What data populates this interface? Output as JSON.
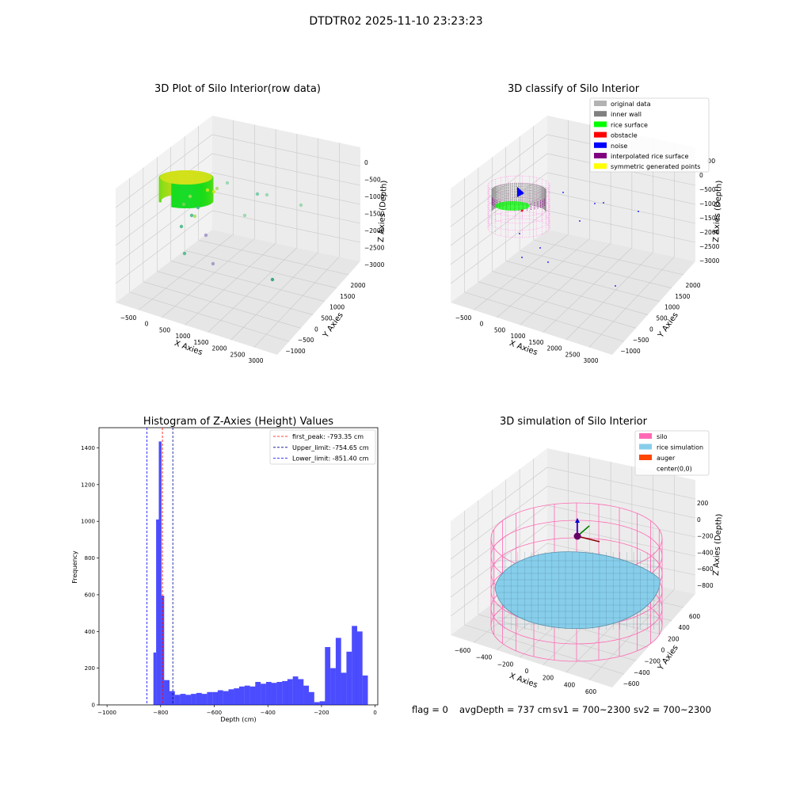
{
  "figure": {
    "suptitle": "DTDTR02 2025-11-10 23:23:23",
    "footer": {
      "flag": "flag = 0",
      "avg_depth": "avgDepth = 737 cm",
      "sv1": "sv1 = 700~2300",
      "sv2": "sv2 = 700~2300"
    }
  },
  "panels": {
    "raw": {
      "title": "3D Plot of Silo Interior(row data)",
      "xlabel": "X Axies",
      "ylabel": "Y Axies",
      "zlabel": "Z Axies (Depth)",
      "xticks": [
        "−500",
        "0",
        "500",
        "1000",
        "1500",
        "2000",
        "2500",
        "3000"
      ],
      "yticks": [
        "−1000",
        "−500",
        "0",
        "500",
        "1000",
        "1500",
        "2000"
      ],
      "zticks": [
        "0",
        "−500",
        "−1000",
        "−1500",
        "−2000",
        "−2500",
        "−3000"
      ]
    },
    "classify": {
      "title": "3D classify of Silo Interior",
      "xlabel": "X Axies",
      "ylabel": "Y Axies",
      "zlabel": "Z Axies (Depth)",
      "xticks": [
        "−500",
        "0",
        "500",
        "1000",
        "1500",
        "2000",
        "2500",
        "3000"
      ],
      "yticks": [
        "−1000",
        "−500",
        "0",
        "500",
        "1000",
        "1500",
        "2000"
      ],
      "zticks": [
        "0",
        "−500",
        "−1000",
        "−1500",
        "−2000",
        "−2500",
        "−3000"
      ],
      "z_top_partial": "00",
      "legend": [
        {
          "label": "original data",
          "color": "#b3b3b3"
        },
        {
          "label": "inner wall",
          "color": "#808080"
        },
        {
          "label": "rice surface",
          "color": "#00ff00"
        },
        {
          "label": "obstacle",
          "color": "#ff0000"
        },
        {
          "label": "noise",
          "color": "#0000ff"
        },
        {
          "label": "interpolated rice surface",
          "color": "#800080"
        },
        {
          "label": "symmetric generated points",
          "color": "#ffff00"
        }
      ]
    },
    "simulation": {
      "title": "3D simulation of Silo Interior",
      "xlabel": "X Axies",
      "ylabel": "Y Axies",
      "zlabel": "Z Axies (Depth)",
      "xticks": [
        "−600",
        "−400",
        "−200",
        "0",
        "200",
        "400",
        "600"
      ],
      "yticks": [
        "−600",
        "−400",
        "−200",
        "0",
        "200",
        "400",
        "600"
      ],
      "zticks": [
        "200",
        "0",
        "−200",
        "−400",
        "−600",
        "−800"
      ],
      "legend": [
        {
          "label": "silo",
          "color": "#ff69b4"
        },
        {
          "label": "rice simulation",
          "color": "#87ceeb"
        },
        {
          "label": "auger",
          "color": "#ff4500"
        },
        {
          "label": "center(0,0)",
          "color": ""
        }
      ]
    }
  },
  "chart_data": {
    "type": "bar",
    "title": "Histogram of Z-Axies (Height) Values",
    "xlabel": "Depth (cm)",
    "ylabel": "Frequency",
    "xlim": [
      -1030,
      10
    ],
    "ylim": [
      0,
      1510
    ],
    "xticks": [
      -1000,
      -800,
      -600,
      -400,
      -200,
      0
    ],
    "yticks": [
      0,
      200,
      400,
      600,
      800,
      1000,
      1200,
      1400
    ],
    "bar_color": "#0000ff",
    "bins": [
      {
        "x0": -827,
        "x1": -817,
        "count": 285
      },
      {
        "x0": -817,
        "x1": -807,
        "count": 1010
      },
      {
        "x0": -807,
        "x1": -797,
        "count": 1435
      },
      {
        "x0": -797,
        "x1": -787,
        "count": 595
      },
      {
        "x0": -787,
        "x1": -767,
        "count": 135
      },
      {
        "x0": -767,
        "x1": -747,
        "count": 75
      },
      {
        "x0": -747,
        "x1": -727,
        "count": 55
      },
      {
        "x0": -727,
        "x1": -707,
        "count": 60
      },
      {
        "x0": -707,
        "x1": -687,
        "count": 55
      },
      {
        "x0": -687,
        "x1": -667,
        "count": 60
      },
      {
        "x0": -667,
        "x1": -647,
        "count": 65
      },
      {
        "x0": -647,
        "x1": -627,
        "count": 60
      },
      {
        "x0": -627,
        "x1": -607,
        "count": 70
      },
      {
        "x0": -607,
        "x1": -587,
        "count": 70
      },
      {
        "x0": -587,
        "x1": -567,
        "count": 80
      },
      {
        "x0": -567,
        "x1": -547,
        "count": 75
      },
      {
        "x0": -547,
        "x1": -527,
        "count": 85
      },
      {
        "x0": -527,
        "x1": -507,
        "count": 90
      },
      {
        "x0": -507,
        "x1": -487,
        "count": 100
      },
      {
        "x0": -487,
        "x1": -467,
        "count": 105
      },
      {
        "x0": -467,
        "x1": -447,
        "count": 100
      },
      {
        "x0": -447,
        "x1": -427,
        "count": 125
      },
      {
        "x0": -427,
        "x1": -407,
        "count": 115
      },
      {
        "x0": -407,
        "x1": -387,
        "count": 125
      },
      {
        "x0": -387,
        "x1": -367,
        "count": 120
      },
      {
        "x0": -367,
        "x1": -347,
        "count": 125
      },
      {
        "x0": -347,
        "x1": -327,
        "count": 130
      },
      {
        "x0": -327,
        "x1": -307,
        "count": 140
      },
      {
        "x0": -307,
        "x1": -287,
        "count": 155
      },
      {
        "x0": -287,
        "x1": -267,
        "count": 140
      },
      {
        "x0": -267,
        "x1": -247,
        "count": 105
      },
      {
        "x0": -247,
        "x1": -227,
        "count": 70
      },
      {
        "x0": -227,
        "x1": -207,
        "count": 15
      },
      {
        "x0": -207,
        "x1": -187,
        "count": 20
      },
      {
        "x0": -187,
        "x1": -167,
        "count": 315
      },
      {
        "x0": -167,
        "x1": -147,
        "count": 200
      },
      {
        "x0": -147,
        "x1": -127,
        "count": 365
      },
      {
        "x0": -127,
        "x1": -107,
        "count": 175
      },
      {
        "x0": -107,
        "x1": -87,
        "count": 290
      },
      {
        "x0": -87,
        "x1": -67,
        "count": 430
      },
      {
        "x0": -67,
        "x1": -47,
        "count": 400
      },
      {
        "x0": -47,
        "x1": -27,
        "count": 160
      }
    ],
    "vlines": [
      {
        "label": "first_peak: -793.35 cm",
        "x": -793.35,
        "color": "#ff0000"
      },
      {
        "label": "Upper_limit: -754.65 cm",
        "x": -754.65,
        "color": "#00008b"
      },
      {
        "label": "Lower_limit: -851.40 cm",
        "x": -851.4,
        "color": "#0000ff"
      }
    ]
  }
}
